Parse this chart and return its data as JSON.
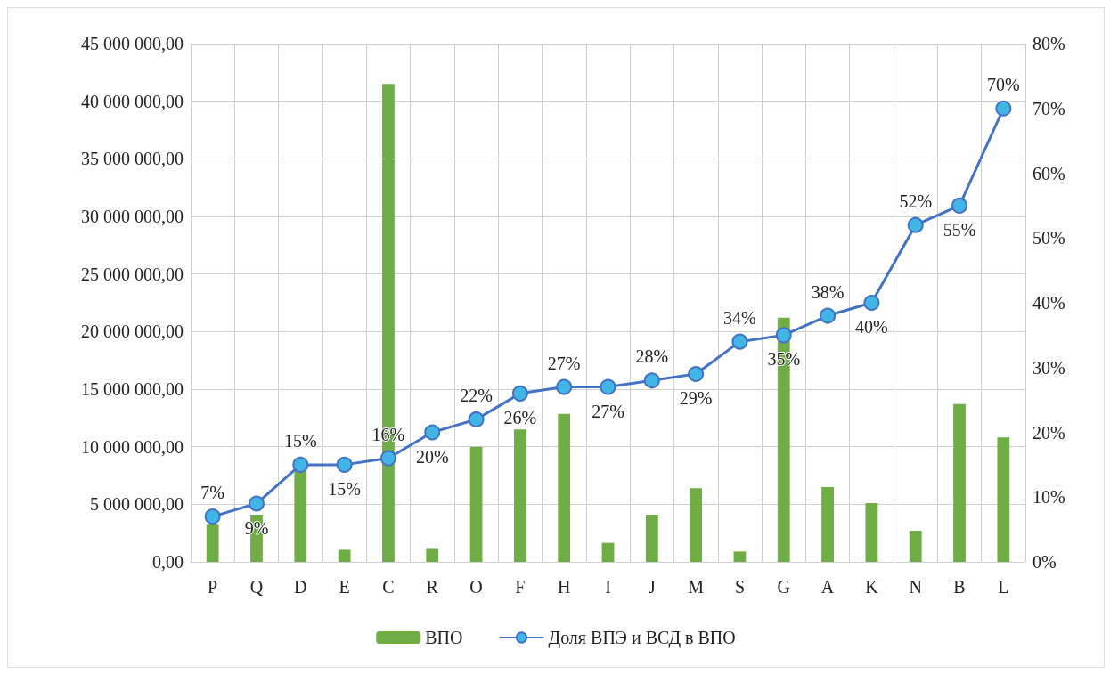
{
  "chart_data": {
    "type": "bar",
    "categories": [
      "P",
      "Q",
      "D",
      "E",
      "C",
      "R",
      "O",
      "F",
      "H",
      "I",
      "J",
      "M",
      "S",
      "G",
      "A",
      "K",
      "N",
      "B",
      "L"
    ],
    "series": [
      {
        "name": "ВПО",
        "color": "#70ad47",
        "values": [
          3300000,
          4100000,
          7900000,
          1050000,
          41500000,
          1200000,
          10000000,
          11500000,
          12850000,
          1650000,
          4100000,
          6400000,
          900000,
          21200000,
          6500000,
          5100000,
          2700000,
          13700000,
          10800000
        ]
      },
      {
        "name": "Доля ВПЭ и ВСД в ВПО",
        "type": "line",
        "axis": "y2",
        "color": "#4472c4",
        "marker": "circle",
        "value_labels": [
          "7%",
          "9%",
          "15%",
          "15%",
          "16%",
          "20%",
          "22%",
          "26%",
          "27%",
          "27%",
          "28%",
          "29%",
          "34%",
          "35%",
          "38%",
          "40%",
          "52%",
          "55%",
          "70%"
        ],
        "values": [
          7,
          9,
          15,
          15,
          16,
          20,
          22,
          26,
          27,
          27,
          28,
          29,
          34,
          35,
          38,
          40,
          52,
          55,
          70
        ]
      }
    ],
    "ylim": [
      0,
      45000000
    ],
    "yticks": [
      {
        "value": 0,
        "label": "0,00"
      },
      {
        "value": 5000000,
        "label": "5 000 000,00"
      },
      {
        "value": 10000000,
        "label": "10 000 000,00"
      },
      {
        "value": 15000000,
        "label": "15 000 000,00"
      },
      {
        "value": 20000000,
        "label": "20 000 000,00"
      },
      {
        "value": 25000000,
        "label": "25 000 000,00"
      },
      {
        "value": 30000000,
        "label": "30 000 000,00"
      },
      {
        "value": 35000000,
        "label": "35 000 000,00"
      },
      {
        "value": 40000000,
        "label": "40 000 000,00"
      },
      {
        "value": 45000000,
        "label": "45 000 000,00"
      }
    ],
    "y2lim": [
      0,
      80
    ],
    "y2ticks": [
      {
        "value": 0,
        "label": "0%"
      },
      {
        "value": 10,
        "label": "10%"
      },
      {
        "value": 20,
        "label": "20%"
      },
      {
        "value": 30,
        "label": "30%"
      },
      {
        "value": 40,
        "label": "40%"
      },
      {
        "value": 50,
        "label": "50%"
      },
      {
        "value": 60,
        "label": "60%"
      },
      {
        "value": 70,
        "label": "70%"
      },
      {
        "value": 80,
        "label": "80%"
      }
    ],
    "grid": true,
    "legend": "bottom"
  }
}
